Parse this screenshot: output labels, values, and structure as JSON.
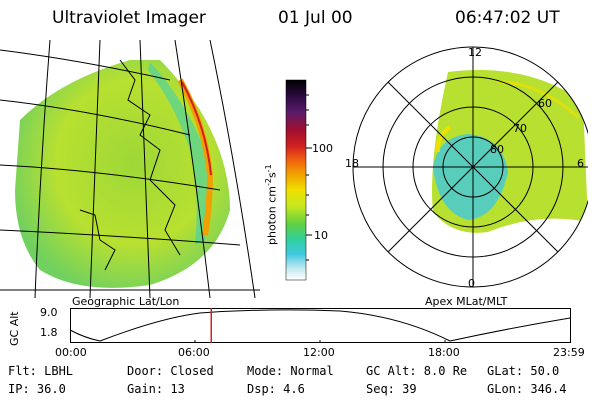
{
  "header": {
    "title": "Ultraviolet Imager",
    "date": "01 Jul 00",
    "time": "06:47:02 UT"
  },
  "colorbar": {
    "label": "photon cm",
    "label_sup1": "-2",
    "label_mid": "s",
    "label_sup2": "-1",
    "ticks": [
      "100",
      "10"
    ],
    "colors": [
      "#000000",
      "#2a0a3e",
      "#5a1a6a",
      "#a01030",
      "#d02020",
      "#f06010",
      "#f0a000",
      "#f0e000",
      "#c8e820",
      "#60d040",
      "#30d0a0",
      "#40c8e0",
      "#c0e8f0",
      "#ffffff"
    ]
  },
  "geo_panel": {
    "caption": "Geographic Lat/Lon"
  },
  "polar_panel": {
    "caption": "Apex MLat/MLT",
    "mlt_labels": {
      "top": "12",
      "left": "18",
      "right": "6",
      "bottom": "0"
    },
    "lat_labels": [
      "60",
      "70",
      "80"
    ]
  },
  "timeline": {
    "ylabel": "GC Alt",
    "yticks": [
      "9.0",
      "1.8"
    ],
    "xticks": [
      "00:00",
      "06:00",
      "12:00",
      "18:00",
      "23:59"
    ],
    "marker_hours": 6.78
  },
  "info": {
    "row1": {
      "flt": "Flt: LBHL",
      "door": "Door: Closed",
      "mode": "Mode: Normal",
      "gcalt": "GC Alt: 8.0 Re",
      "glat": "GLat:  50.0"
    },
    "row2": {
      "ip": "IP: 36.0",
      "gain": "Gain: 13",
      "dsp": "Dsp:    4.6",
      "seq": "Seq: 39",
      "glon": "GLon: 346.4"
    }
  }
}
